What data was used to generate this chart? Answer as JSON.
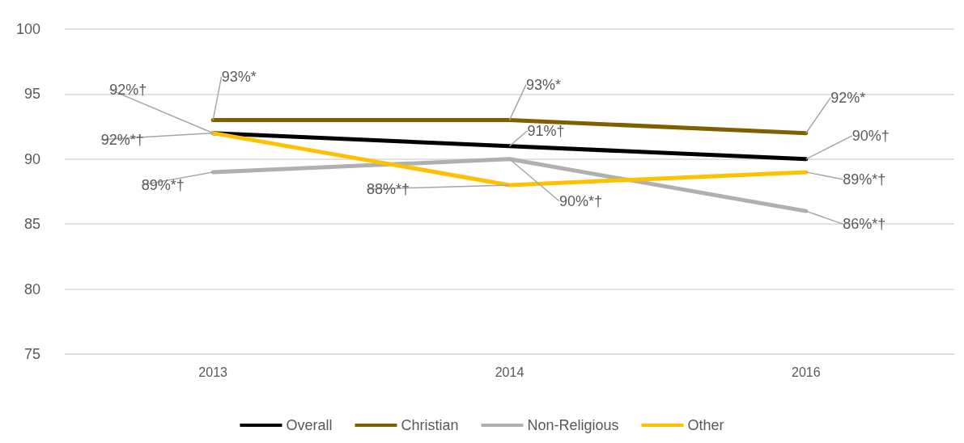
{
  "chart_data": {
    "type": "line",
    "categories": [
      "2013",
      "2014",
      "2016"
    ],
    "series": [
      {
        "name": "Overall",
        "color": "#000000",
        "values": [
          92,
          91,
          90
        ],
        "value_labels": [
          "92%†",
          "91%†",
          "90%†"
        ]
      },
      {
        "name": "Christian",
        "color": "#7f6000",
        "values": [
          93,
          93,
          92
        ],
        "value_labels": [
          "93%*",
          "93%*",
          "92%*"
        ]
      },
      {
        "name": "Non-Religious",
        "color": "#b0b0b0",
        "values": [
          89,
          90,
          86
        ],
        "value_labels": [
          "89%*†",
          "90%*†",
          "86%*†"
        ]
      },
      {
        "name": "Other",
        "color": "#ffc000",
        "values": [
          92,
          88,
          89
        ],
        "value_labels": [
          "92%*†",
          "88%*†",
          "89%*†"
        ]
      }
    ],
    "ylim": [
      75,
      100
    ],
    "yticks": [
      75,
      80,
      85,
      90,
      95,
      100
    ],
    "grid": "y",
    "legend": "bottom",
    "marker": "none",
    "line_style": "solid"
  }
}
